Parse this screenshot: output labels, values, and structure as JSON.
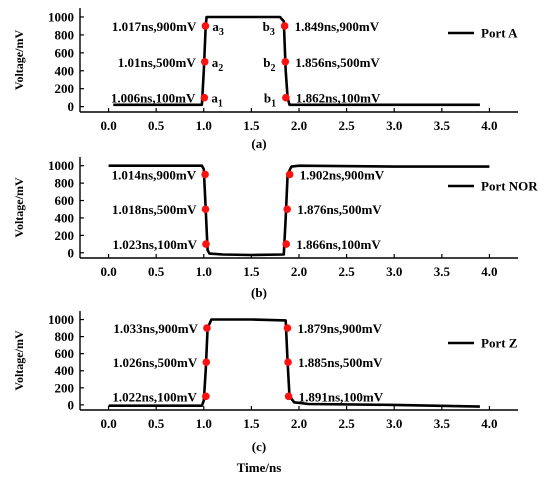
{
  "figure": {
    "xlabel": "Time/ns"
  },
  "chart_data": [
    {
      "type": "line",
      "caption": "(a)",
      "ylabel": "Voltage/mV",
      "xlabel": "",
      "xlim": [
        -0.3,
        4.3
      ],
      "ylim": [
        -60,
        1100
      ],
      "xticks": [
        0.0,
        0.5,
        1.0,
        1.5,
        2.0,
        2.5,
        3.0,
        3.5,
        4.0
      ],
      "xtick_labels": [
        "0.0",
        "0.5",
        "1.0",
        "1.5",
        "2.0",
        "2.5",
        "3.0",
        "3.5",
        "4.0"
      ],
      "yticks": [
        0,
        200,
        400,
        600,
        800,
        1000
      ],
      "ytick_labels": [
        "0",
        "200",
        "400",
        "600",
        "800",
        "1000"
      ],
      "legend_position": "top-right",
      "series": [
        {
          "name": "Port A",
          "x": [
            0.05,
            0.98,
            1.0,
            1.02,
            1.03,
            1.8,
            1.84,
            1.86,
            1.88,
            1.9,
            3.9
          ],
          "y": [
            20,
            20,
            400,
            900,
            1000,
            1000,
            950,
            400,
            100,
            20,
            20
          ]
        }
      ],
      "points": [
        {
          "x": 1.017,
          "y": 900,
          "label": "1.017ns,900mV",
          "tag": "a",
          "sub": "3",
          "side": "left"
        },
        {
          "x": 1.01,
          "y": 500,
          "label": "1.01ns,500mV",
          "tag": "a",
          "sub": "2",
          "side": "left"
        },
        {
          "x": 1.006,
          "y": 100,
          "label": "1.006ns,100mV",
          "tag": "a",
          "sub": "1",
          "side": "left"
        },
        {
          "x": 1.849,
          "y": 900,
          "label": "1.849ns,900mV",
          "tag": "b",
          "sub": "3",
          "side": "right"
        },
        {
          "x": 1.856,
          "y": 500,
          "label": "1.856ns,500mV",
          "tag": "b",
          "sub": "2",
          "side": "right"
        },
        {
          "x": 1.862,
          "y": 100,
          "label": "1.862ns,100mV",
          "tag": "b",
          "sub": "1",
          "side": "right"
        }
      ]
    },
    {
      "type": "line",
      "caption": "(b)",
      "ylabel": "Voltage/mV",
      "xlabel": "",
      "xlim": [
        -0.3,
        4.3
      ],
      "ylim": [
        -60,
        1100
      ],
      "xticks": [
        0.0,
        0.5,
        1.0,
        1.5,
        2.0,
        2.5,
        3.0,
        3.5,
        4.0
      ],
      "xtick_labels": [
        "0.0",
        "0.5",
        "1.0",
        "1.5",
        "2.0",
        "2.5",
        "3.0",
        "3.5",
        "4.0"
      ],
      "yticks": [
        0,
        200,
        400,
        600,
        800,
        1000
      ],
      "ytick_labels": [
        "0",
        "200",
        "400",
        "600",
        "800",
        "1000"
      ],
      "legend_position": "right",
      "series": [
        {
          "name": "Port NOR",
          "x": [
            0.0,
            0.98,
            1.0,
            1.02,
            1.04,
            1.06,
            1.2,
            1.5,
            1.84,
            1.86,
            1.88,
            1.92,
            2.0,
            3.0,
            4.0
          ],
          "y": [
            1000,
            1000,
            960,
            500,
            30,
            -10,
            -20,
            -25,
            -20,
            400,
            900,
            990,
            1000,
            990,
            990
          ]
        }
      ],
      "points": [
        {
          "x": 1.014,
          "y": 900,
          "label": "1.014ns,900mV",
          "side": "left"
        },
        {
          "x": 1.018,
          "y": 500,
          "label": "1.018ns,500mV",
          "side": "left"
        },
        {
          "x": 1.023,
          "y": 100,
          "label": "1.023ns,100mV",
          "side": "left"
        },
        {
          "x": 1.902,
          "y": 900,
          "label": "1.902ns,900mV",
          "side": "right"
        },
        {
          "x": 1.876,
          "y": 500,
          "label": "1.876ns,500mV",
          "side": "right"
        },
        {
          "x": 1.866,
          "y": 100,
          "label": "1.866ns,100mV",
          "side": "right"
        }
      ]
    },
    {
      "type": "line",
      "caption": "(c)",
      "ylabel": "Voltage/mV",
      "xlabel": "Time/ns",
      "xlim": [
        -0.3,
        4.3
      ],
      "ylim": [
        -60,
        1100
      ],
      "xticks": [
        0.0,
        0.5,
        1.0,
        1.5,
        2.0,
        2.5,
        3.0,
        3.5,
        4.0
      ],
      "xtick_labels": [
        "0.0",
        "0.5",
        "1.0",
        "1.5",
        "2.0",
        "2.5",
        "3.0",
        "3.5",
        "4.0"
      ],
      "yticks": [
        0,
        200,
        400,
        600,
        800,
        1000
      ],
      "ytick_labels": [
        "0",
        "200",
        "400",
        "600",
        "800",
        "1000"
      ],
      "legend_position": "right",
      "series": [
        {
          "name": "Port Z",
          "x": [
            0.0,
            0.98,
            1.0,
            1.02,
            1.04,
            1.08,
            1.5,
            1.86,
            1.88,
            1.9,
            1.95,
            2.1,
            3.0,
            3.9
          ],
          "y": [
            -10,
            -10,
            50,
            400,
            900,
            1000,
            1000,
            990,
            500,
            100,
            30,
            10,
            0,
            -20
          ]
        }
      ],
      "points": [
        {
          "x": 1.033,
          "y": 900,
          "label": "1.033ns,900mV",
          "side": "left"
        },
        {
          "x": 1.026,
          "y": 500,
          "label": "1.026ns,500mV",
          "side": "left"
        },
        {
          "x": 1.022,
          "y": 100,
          "label": "1.022ns,100mV",
          "side": "left"
        },
        {
          "x": 1.879,
          "y": 900,
          "label": "1.879ns,900mV",
          "side": "right"
        },
        {
          "x": 1.885,
          "y": 500,
          "label": "1.885ns,500mV",
          "side": "right"
        },
        {
          "x": 1.891,
          "y": 100,
          "label": "1.891ns,100mV",
          "side": "right"
        }
      ]
    }
  ]
}
